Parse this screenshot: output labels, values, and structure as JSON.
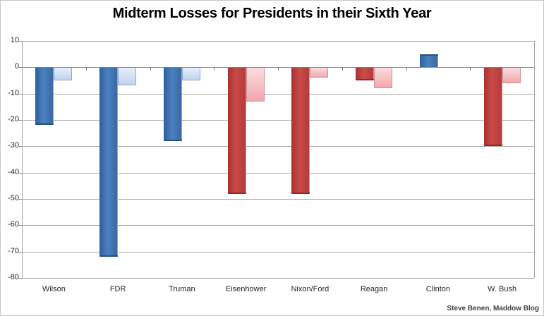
{
  "title": "Midterm Losses for Presidents in their Sixth Year",
  "credit": "Steve Benen, Maddow Blog",
  "chart_data": {
    "type": "bar",
    "title": "Midterm Losses for Presidents in their Sixth Year",
    "xlabel": "",
    "ylabel": "",
    "categories": [
      "Wilson",
      "FDR",
      "Truman",
      "Eisenhower",
      "Nixon/Ford",
      "Reagan",
      "Clinton",
      "W. Bush"
    ],
    "series": [
      {
        "name": "dark",
        "values": [
          -22,
          -72,
          -28,
          -48,
          -48,
          -5,
          5,
          -30
        ]
      },
      {
        "name": "light",
        "values": [
          -5,
          -7,
          -5,
          -13,
          -4,
          -8,
          0,
          -6
        ]
      }
    ],
    "category_color_group": [
      "blue",
      "blue",
      "blue",
      "red",
      "red",
      "red",
      "blue",
      "red"
    ],
    "ylim": [
      -80,
      10
    ],
    "yticks": [
      10,
      0,
      -10,
      -20,
      -30,
      -40,
      -50,
      -60,
      -70,
      -80
    ],
    "grid": true,
    "legend": "none",
    "colors": {
      "gridline": "#a6a6a6",
      "zero_line": "#808080",
      "tick": "#808080",
      "axis_text": "#262626",
      "title_text": "#000000",
      "credit_text": "#3f3f3f",
      "background": "#ffffff",
      "bar_styles": {
        "blue": {
          "dark_gradient": [
            "#2e5f9d",
            "#4c81c0",
            "#36689f"
          ],
          "dark_edge": "#25527f",
          "light_gradient": [
            "#e7f0fb",
            "#bed3f0"
          ],
          "light_border": "#8fa8cc"
        },
        "red": {
          "dark_gradient": [
            "#aa3233",
            "#c94a49",
            "#b23a39"
          ],
          "dark_edge": "#8e2a29",
          "light_gradient": [
            "#fbdcdf",
            "#f0a8ad"
          ],
          "light_border": "#ce9297"
        }
      }
    }
  }
}
